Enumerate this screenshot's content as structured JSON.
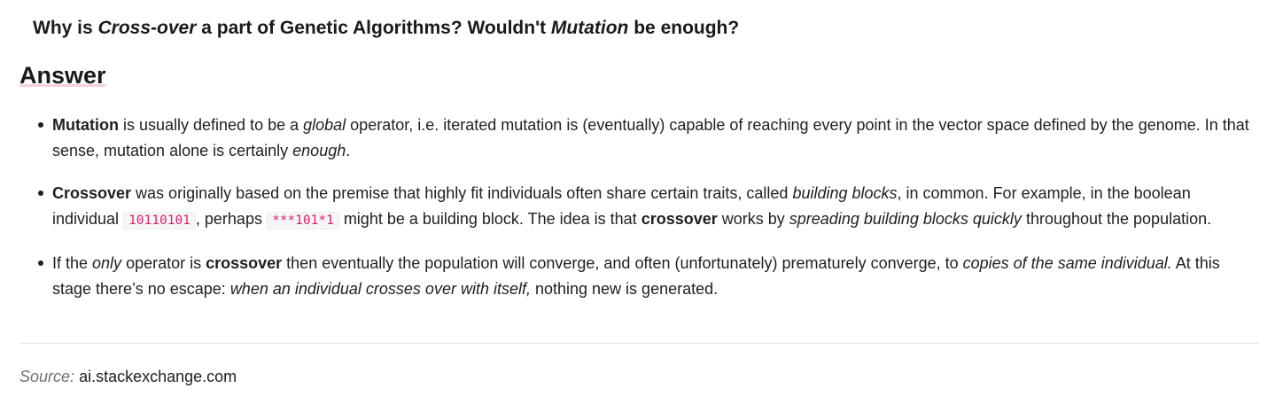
{
  "question": {
    "part1": "Why is ",
    "em1": "Cross-over",
    "part2": " a part of Genetic Algorithms? Wouldn't ",
    "em2": "Mutation",
    "part3": " be enough?"
  },
  "answer_heading": "Answer",
  "bullets": [
    {
      "t1": "Mutation",
      "t2": " is usually defined to be a ",
      "t3": "global",
      "t4": " operator, i.e. iterated mutation is (eventually) capable of reaching every point in the vector space defined by the genome. In that sense, mutation alone is certainly ",
      "t5": "enough",
      "t6": "."
    },
    {
      "t1": "Crossover",
      "t2": " was originally based on the premise that highly fit individuals often share certain traits, called ",
      "t3": "building blocks",
      "t4": ", in common. For example, in the boolean individual ",
      "code1": "10110101",
      "t5": ", perhaps ",
      "code2": "***101*1",
      "t6": " might be a building block. The idea is that ",
      "t7": "crossover",
      "t8": " works by ",
      "t9": "spreading building blocks quickly",
      "t10": " throughout the population."
    },
    {
      "t1": "If the ",
      "t2": "only",
      "t3": " operator is ",
      "t4": "crossover",
      "t5": " then eventually the population will converge, and often (unfortunately) prematurely converge, to ",
      "t6": "copies of the same individual.",
      "t7": " At this stage there’s no escape: ",
      "t8": "when an individual crosses over with itself,",
      "t9": " nothing new is generated."
    }
  ],
  "source": {
    "label": "Source:",
    "site": "ai.stackexchange.com"
  }
}
